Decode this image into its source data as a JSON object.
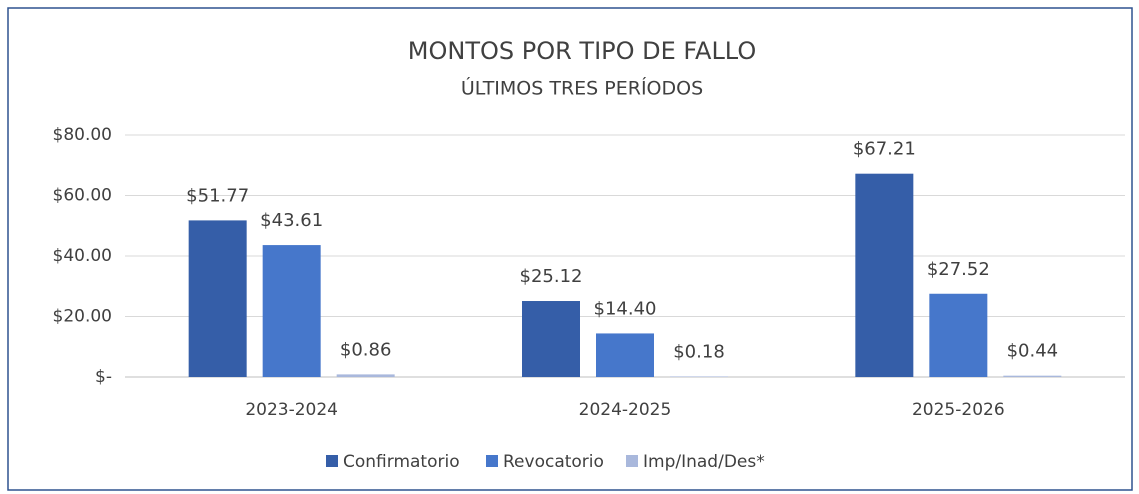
{
  "chart_data": {
    "type": "bar",
    "title": "MONTOS POR TIPO DE FALLO",
    "subtitle": "ÚLTIMOS TRES PERÍODOS",
    "categories": [
      "2023-2024",
      "2024-2025",
      "2025-2026"
    ],
    "series": [
      {
        "name": "Confirmatorio",
        "color": "#355ea8",
        "values": [
          51.77,
          25.12,
          67.21
        ],
        "value_labels": [
          "$51.77",
          "$25.12",
          "$67.21"
        ]
      },
      {
        "name": "Revocatorio",
        "color": "#4677cb",
        "values": [
          43.61,
          14.4,
          27.52
        ],
        "value_labels": [
          "$43.61",
          "$14.40",
          "$27.52"
        ]
      },
      {
        "name": "Imp/Inad/Des*",
        "color": "#a9b8dc",
        "values": [
          0.86,
          0.18,
          0.44
        ],
        "value_labels": [
          "$0.86",
          "$0.18",
          "$0.44"
        ]
      }
    ],
    "ylim": [
      0,
      80
    ],
    "yticks": [
      {
        "value": 0,
        "label": "$-"
      },
      {
        "value": 20,
        "label": "$20.00"
      },
      {
        "value": 40,
        "label": "$40.00"
      },
      {
        "value": 60,
        "label": "$60.00"
      },
      {
        "value": 80,
        "label": "$80.00"
      }
    ],
    "grid": true,
    "legend": "bottom"
  }
}
